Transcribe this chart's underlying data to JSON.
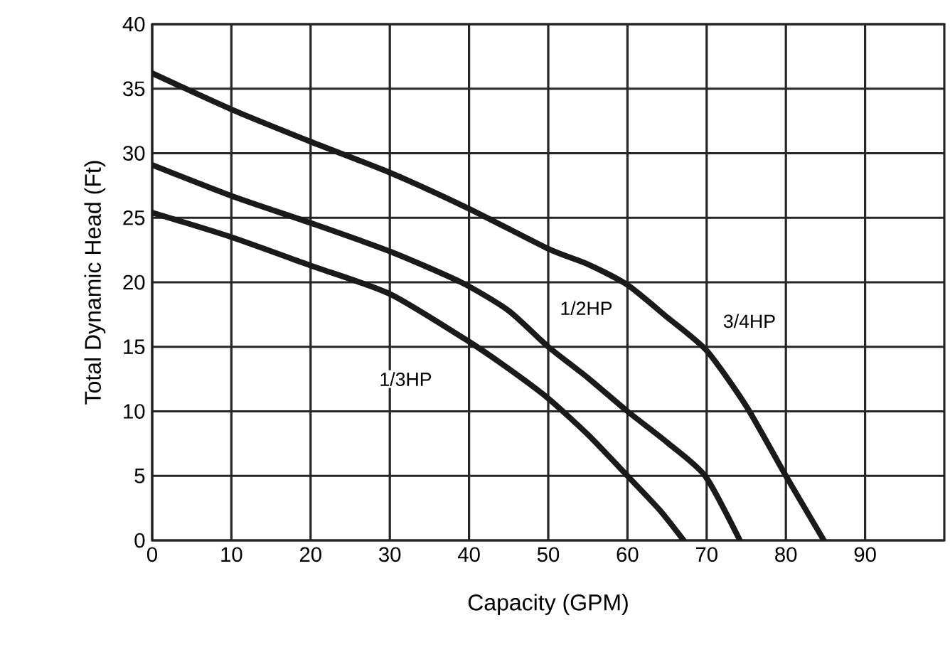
{
  "chart_data": {
    "type": "line",
    "xlabel": "Capacity (GPM)",
    "ylabel": "Total Dynamic Head (Ft)",
    "xlim": [
      0,
      100
    ],
    "xticks": [
      0,
      10,
      20,
      30,
      40,
      50,
      60,
      70,
      80,
      90
    ],
    "ylim": [
      0,
      40
    ],
    "yticks": [
      0,
      5,
      10,
      15,
      20,
      25,
      30,
      35,
      40
    ],
    "grid": true,
    "marker": "none",
    "line_style": "solid",
    "series": [
      {
        "color": "#1a1a1a",
        "x": [
          0,
          10,
          20,
          30,
          40,
          50,
          55,
          60,
          65,
          70,
          75,
          80,
          84.8
        ],
        "values": [
          36.2,
          33.4,
          30.9,
          28.5,
          25.7,
          22.6,
          21.4,
          19.8,
          17.3,
          14.7,
          10.4,
          5,
          0
        ]
      },
      {
        "color": "#1a1a1a",
        "x": [
          0,
          10,
          20,
          30,
          39,
          45,
          50,
          55,
          60,
          65,
          69.8,
          74.2
        ],
        "values": [
          29.1,
          26.7,
          24.6,
          22.4,
          20,
          17.8,
          15,
          12.6,
          10,
          7.6,
          5,
          0
        ]
      },
      {
        "color": "#1a1a1a",
        "x": [
          0,
          10,
          20,
          30,
          40,
          45,
          50,
          55,
          60,
          64,
          67.1
        ],
        "values": [
          25.4,
          23.5,
          21.3,
          19.1,
          15.4,
          13.3,
          11,
          8.2,
          5,
          2.4,
          0
        ]
      }
    ],
    "annotations": [
      {
        "text": "3/4HP",
        "x": 75.4,
        "y": 17
      },
      {
        "text": "1/2HP",
        "x": 54.8,
        "y": 18
      },
      {
        "text": "1/3HP",
        "x": 32,
        "y": 12.5
      }
    ]
  }
}
